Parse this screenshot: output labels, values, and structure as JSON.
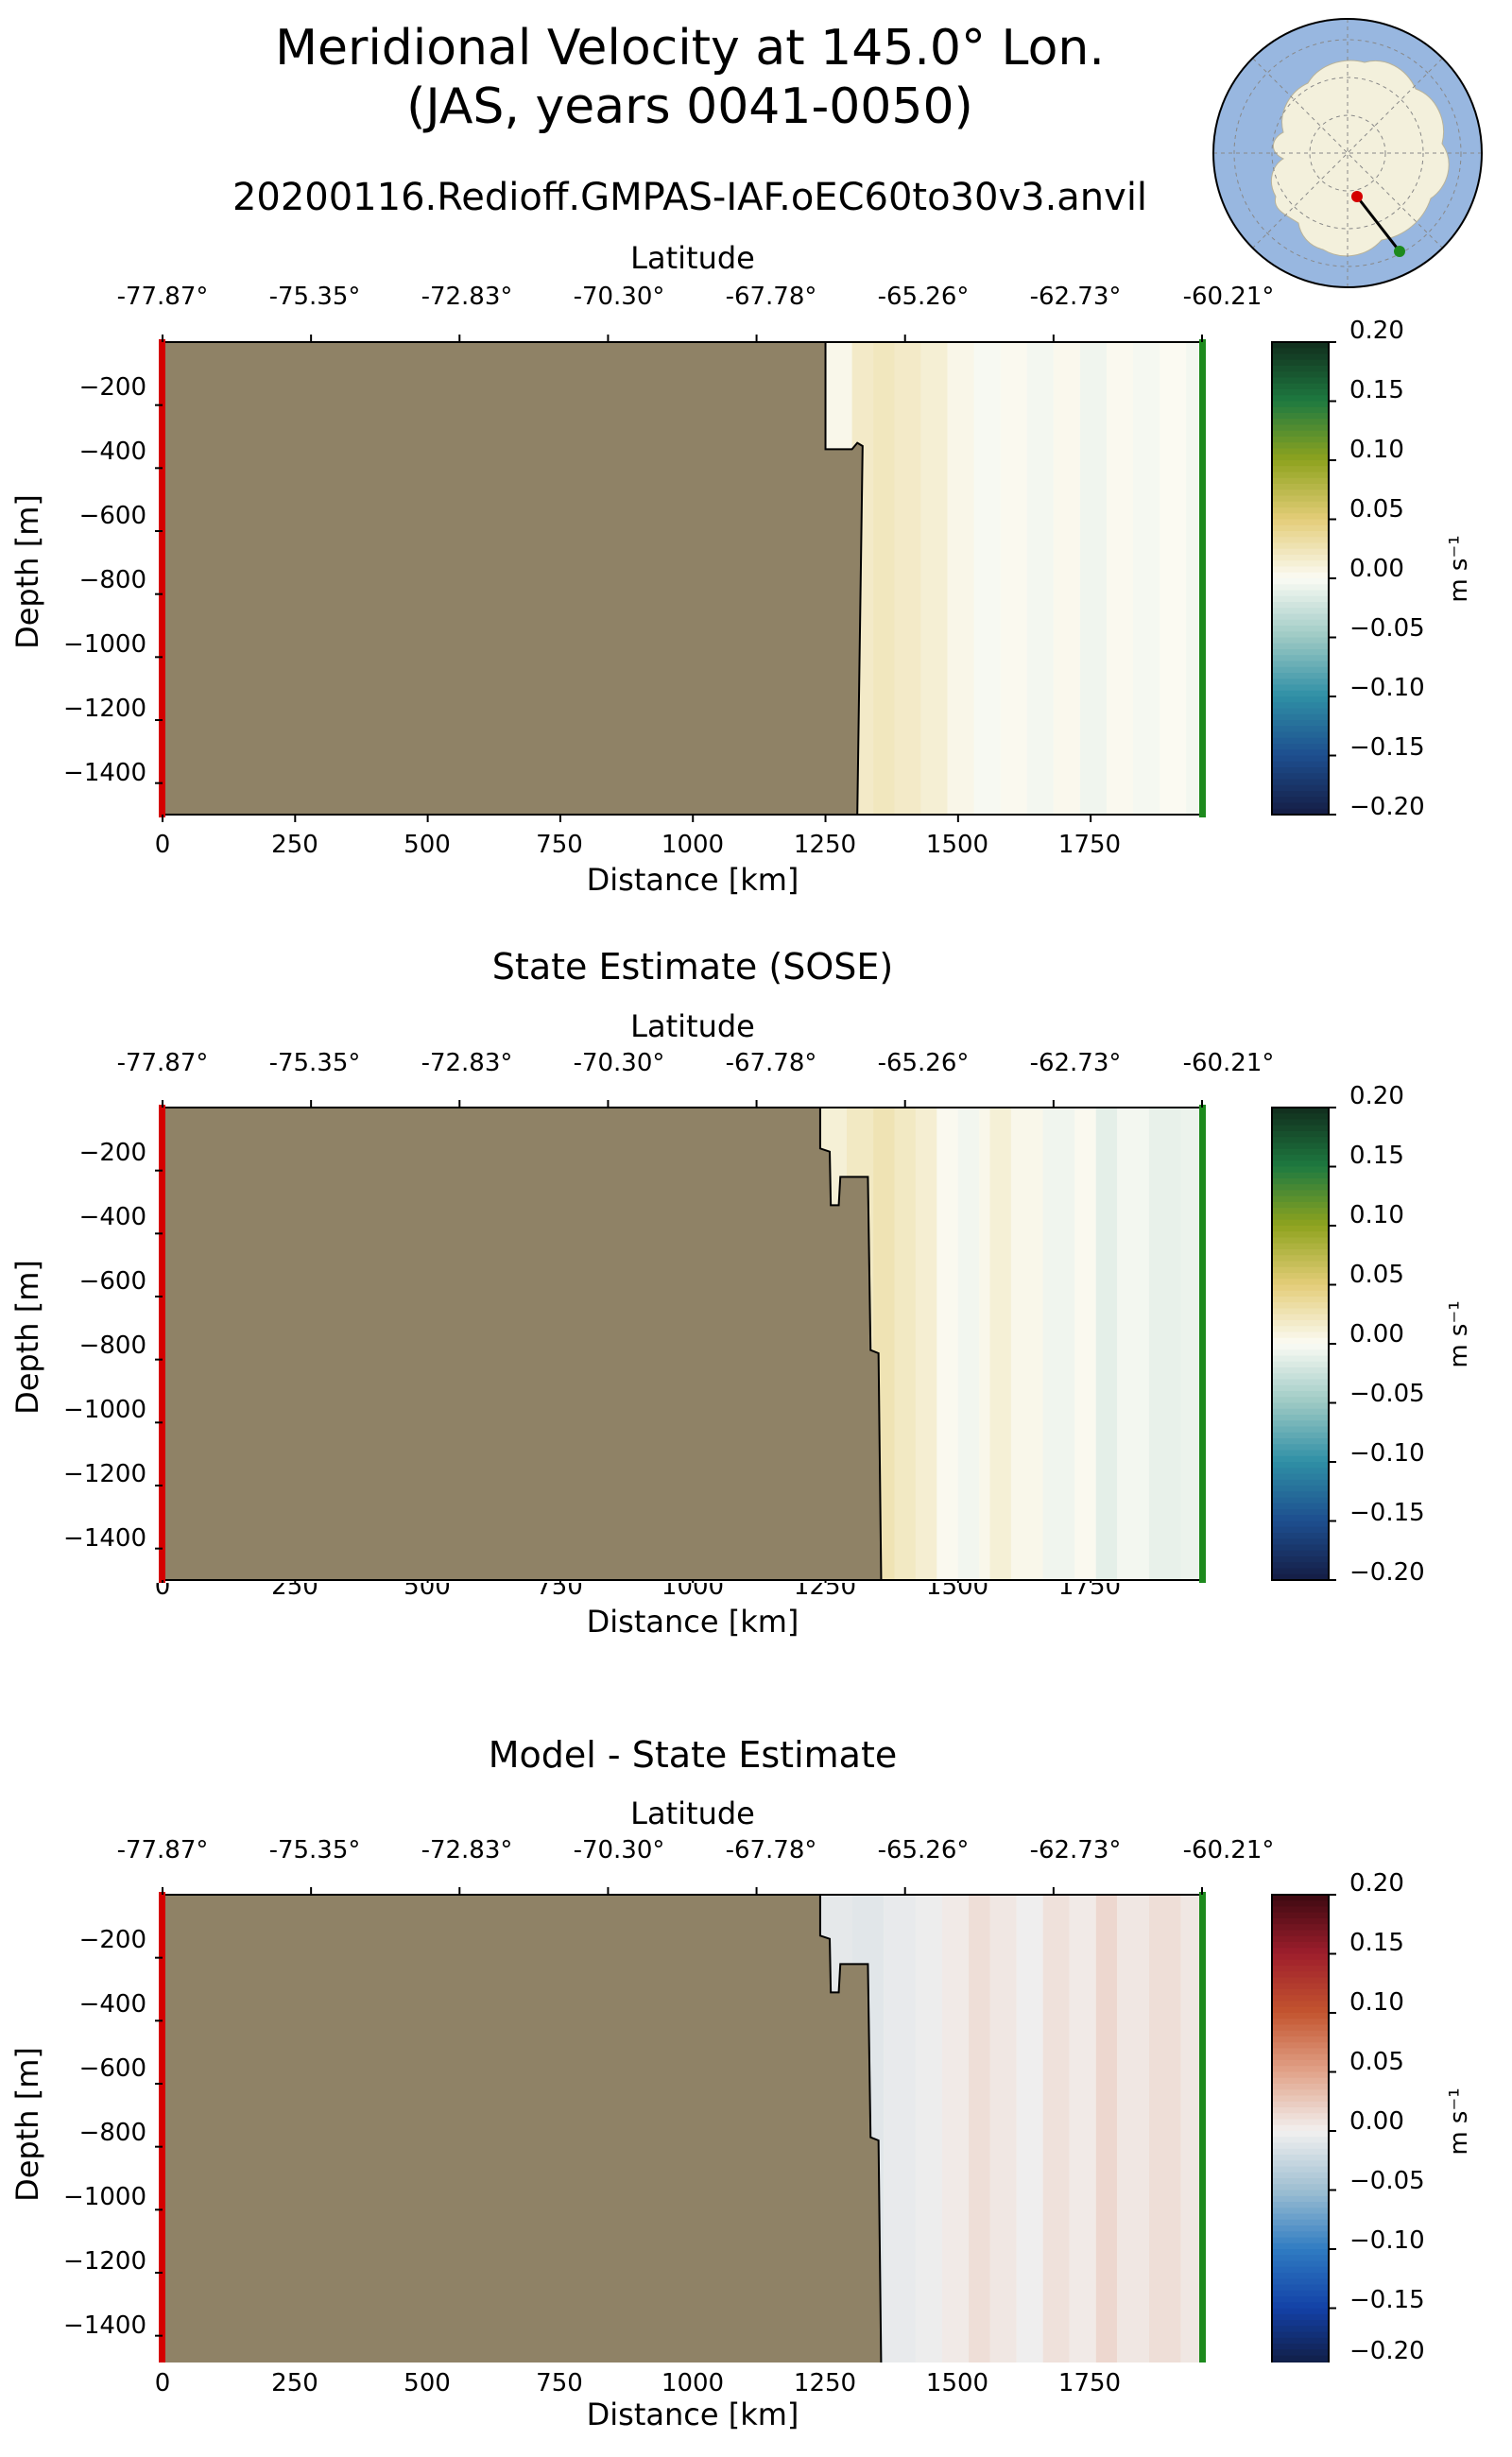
{
  "figure": {
    "title_line1": "Meridional Velocity at 145.0° Lon.",
    "title_line2": "(JAS, years 0041-0050)",
    "run_name": "20200116.Redioff.GMPAS-IAF.oEC60to30v3.anvil"
  },
  "colors": {
    "land": "#8f8266",
    "start_marker": "#d40000",
    "end_marker": "#1d8a1d",
    "ocean_inset": "#98b7e0",
    "antarctica_inset": "#f3f0dc"
  },
  "inset_map": {
    "type": "south-polar-stereographic",
    "transect_start_marker": "red",
    "transect_end_marker": "green"
  },
  "chart_data": [
    {
      "type": "heatmap",
      "title": "",
      "xlabel": "Distance [km]",
      "ylabel": "Depth [m]",
      "top_axis_label": "Latitude",
      "top_tick_labels": [
        "-77.87°",
        "-75.35°",
        "-72.83°",
        "-70.30°",
        "-67.78°",
        "-65.26°",
        "-62.73°",
        "-60.21°"
      ],
      "x_ticks": [
        "0",
        "250",
        "500",
        "750",
        "1000",
        "1250",
        "1500",
        "1750"
      ],
      "y_ticks": [
        "−200",
        "−400",
        "−600",
        "−800",
        "−1000",
        "−1200",
        "−1400"
      ],
      "xlim": [
        0,
        1960
      ],
      "ylim": [
        -1500,
        0
      ],
      "colormap": "velocity",
      "colorbar_label": "m s⁻¹",
      "colorbar_ticks": [
        "0.20",
        "0.15",
        "0.10",
        "0.05",
        "0.00",
        "−0.05",
        "−0.10",
        "−0.15",
        "−0.20"
      ],
      "clim": [
        -0.2,
        0.2
      ],
      "bathymetry_km_m": [
        [
          1250,
          0
        ],
        [
          1250,
          -340
        ],
        [
          1300,
          -340
        ],
        [
          1310,
          -320
        ],
        [
          1320,
          -330
        ],
        [
          1310,
          -1500
        ]
      ],
      "columns_km_ms": [
        [
          1250,
          0.004
        ],
        [
          1300,
          0.018
        ],
        [
          1340,
          0.022
        ],
        [
          1380,
          0.018
        ],
        [
          1430,
          0.013
        ],
        [
          1480,
          0.005
        ],
        [
          1530,
          -0.002
        ],
        [
          1580,
          0.002
        ],
        [
          1630,
          -0.004
        ],
        [
          1680,
          0.003
        ],
        [
          1730,
          -0.006
        ],
        [
          1780,
          0.002
        ],
        [
          1830,
          -0.003
        ],
        [
          1880,
          0.001
        ],
        [
          1930,
          -0.004
        ]
      ]
    },
    {
      "type": "heatmap",
      "title": "State Estimate (SOSE)",
      "xlabel": "Distance [km]",
      "ylabel": "Depth [m]",
      "top_axis_label": "Latitude",
      "top_tick_labels": [
        "-77.87°",
        "-75.35°",
        "-72.83°",
        "-70.30°",
        "-67.78°",
        "-65.26°",
        "-62.73°",
        "-60.21°"
      ],
      "x_ticks": [
        "0",
        "250",
        "500",
        "750",
        "1000",
        "1250",
        "1500",
        "1750"
      ],
      "y_ticks": [
        "−200",
        "−400",
        "−600",
        "−800",
        "−1000",
        "−1200",
        "−1400"
      ],
      "xlim": [
        0,
        1960
      ],
      "ylim": [
        -1500,
        0
      ],
      "colormap": "velocity",
      "colorbar_label": "m s⁻¹",
      "colorbar_ticks": [
        "0.20",
        "0.15",
        "0.10",
        "0.05",
        "0.00",
        "−0.05",
        "−0.10",
        "−0.15",
        "−0.20"
      ],
      "clim": [
        -0.2,
        0.2
      ],
      "bathymetry_km_m": [
        [
          1240,
          0
        ],
        [
          1240,
          -130
        ],
        [
          1258,
          -140
        ],
        [
          1260,
          -310
        ],
        [
          1275,
          -310
        ],
        [
          1278,
          -220
        ],
        [
          1330,
          -220
        ],
        [
          1335,
          -770
        ],
        [
          1350,
          -780
        ],
        [
          1355,
          -1500
        ]
      ],
      "columns_km_ms": [
        [
          1240,
          0.012
        ],
        [
          1290,
          0.02
        ],
        [
          1340,
          0.026
        ],
        [
          1380,
          0.02
        ],
        [
          1420,
          0.014
        ],
        [
          1460,
          0.002
        ],
        [
          1500,
          -0.005
        ],
        [
          1540,
          0.004
        ],
        [
          1560,
          0.012
        ],
        [
          1600,
          0.004
        ],
        [
          1660,
          -0.006
        ],
        [
          1720,
          0.002
        ],
        [
          1760,
          -0.012
        ],
        [
          1800,
          -0.004
        ],
        [
          1860,
          -0.01
        ],
        [
          1920,
          -0.008
        ]
      ]
    },
    {
      "type": "heatmap",
      "title": "Model - State Estimate",
      "xlabel": "Distance [km]",
      "ylabel": "Depth [m]",
      "top_axis_label": "Latitude",
      "top_tick_labels": [
        "-77.87°",
        "-75.35°",
        "-72.83°",
        "-70.30°",
        "-67.78°",
        "-65.26°",
        "-62.73°",
        "-60.21°"
      ],
      "x_ticks": [
        "0",
        "250",
        "500",
        "750",
        "1000",
        "1250",
        "1500",
        "1750"
      ],
      "y_ticks": [
        "−200",
        "−400",
        "−600",
        "−800",
        "−1000",
        "−1200",
        "−1400"
      ],
      "xlim": [
        0,
        1960
      ],
      "ylim": [
        -1500,
        0
      ],
      "colormap": "difference",
      "colorbar_label": "m s⁻¹",
      "colorbar_ticks": [
        "0.20",
        "0.15",
        "0.10",
        "0.05",
        "0.00",
        "−0.05",
        "−0.10",
        "−0.15",
        "−0.20"
      ],
      "clim": [
        -0.2,
        0.2
      ],
      "bathymetry_km_m": [
        [
          1240,
          0
        ],
        [
          1240,
          -130
        ],
        [
          1258,
          -140
        ],
        [
          1260,
          -310
        ],
        [
          1275,
          -310
        ],
        [
          1278,
          -220
        ],
        [
          1330,
          -220
        ],
        [
          1335,
          -770
        ],
        [
          1350,
          -780
        ],
        [
          1355,
          -1500
        ]
      ],
      "columns_km_ms": [
        [
          1240,
          -0.008
        ],
        [
          1300,
          -0.01
        ],
        [
          1360,
          -0.006
        ],
        [
          1420,
          -0.003
        ],
        [
          1470,
          0.004
        ],
        [
          1520,
          0.012
        ],
        [
          1560,
          0.006
        ],
        [
          1610,
          -0.002
        ],
        [
          1660,
          0.01
        ],
        [
          1710,
          0.004
        ],
        [
          1760,
          0.016
        ],
        [
          1800,
          0.006
        ],
        [
          1860,
          0.012
        ],
        [
          1920,
          0.006
        ]
      ]
    }
  ]
}
